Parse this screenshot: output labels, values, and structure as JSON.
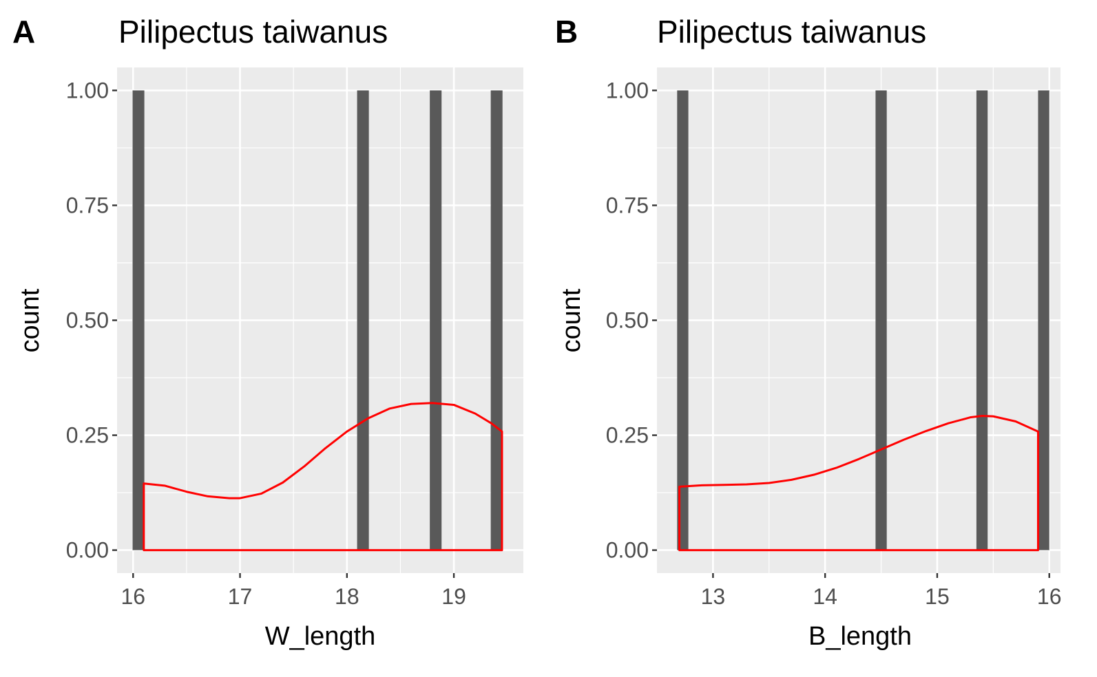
{
  "chart_data": [
    {
      "type": "bar",
      "panel_tag": "A",
      "title": "Pilipectus taiwanus",
      "xlabel": "W_length",
      "ylabel": "count",
      "xlim": [
        15.85,
        19.65
      ],
      "ylim": [
        -0.05,
        1.05
      ],
      "xticks": [
        16,
        17,
        18,
        19
      ],
      "yticks": [
        0.0,
        0.25,
        0.5,
        0.75,
        1.0
      ],
      "ytick_labels": [
        "0.00",
        "0.25",
        "0.50",
        "0.75",
        "1.00"
      ],
      "grid": true,
      "bars": {
        "name": "histogram",
        "color": "#595959",
        "x": [
          16.05,
          18.15,
          18.83,
          19.4
        ],
        "values": [
          1,
          1,
          1,
          1
        ],
        "bin_width": 0.11
      },
      "density": {
        "name": "density",
        "color": "#ff0000",
        "x": [
          16.1,
          16.3,
          16.5,
          16.7,
          16.9,
          17.0,
          17.2,
          17.4,
          17.6,
          17.8,
          18.0,
          18.2,
          18.4,
          18.6,
          18.8,
          19.0,
          19.2,
          19.35,
          19.45
        ],
        "values": [
          0.145,
          0.14,
          0.127,
          0.117,
          0.113,
          0.113,
          0.123,
          0.147,
          0.182,
          0.222,
          0.258,
          0.287,
          0.308,
          0.318,
          0.32,
          0.316,
          0.297,
          0.276,
          0.258
        ]
      }
    },
    {
      "type": "bar",
      "panel_tag": "B",
      "title": "Pilipectus taiwanus",
      "xlabel": "B_length",
      "ylabel": "count",
      "xlim": [
        12.5,
        16.1
      ],
      "ylim": [
        -0.05,
        1.05
      ],
      "xticks": [
        13,
        14,
        15,
        16
      ],
      "yticks": [
        0.0,
        0.25,
        0.5,
        0.75,
        1.0
      ],
      "ytick_labels": [
        "0.00",
        "0.25",
        "0.50",
        "0.75",
        "1.00"
      ],
      "grid": true,
      "bars": {
        "name": "histogram",
        "color": "#595959",
        "x": [
          12.73,
          14.5,
          15.4,
          15.95
        ],
        "values": [
          1,
          1,
          1,
          1
        ],
        "bin_width": 0.1
      },
      "density": {
        "name": "density",
        "color": "#ff0000",
        "x": [
          12.7,
          12.9,
          13.1,
          13.3,
          13.5,
          13.7,
          13.9,
          14.1,
          14.3,
          14.5,
          14.7,
          14.9,
          15.1,
          15.3,
          15.4,
          15.5,
          15.7,
          15.9
        ],
        "values": [
          0.138,
          0.141,
          0.142,
          0.143,
          0.146,
          0.153,
          0.164,
          0.179,
          0.198,
          0.219,
          0.24,
          0.259,
          0.276,
          0.289,
          0.292,
          0.291,
          0.28,
          0.258
        ]
      }
    }
  ]
}
